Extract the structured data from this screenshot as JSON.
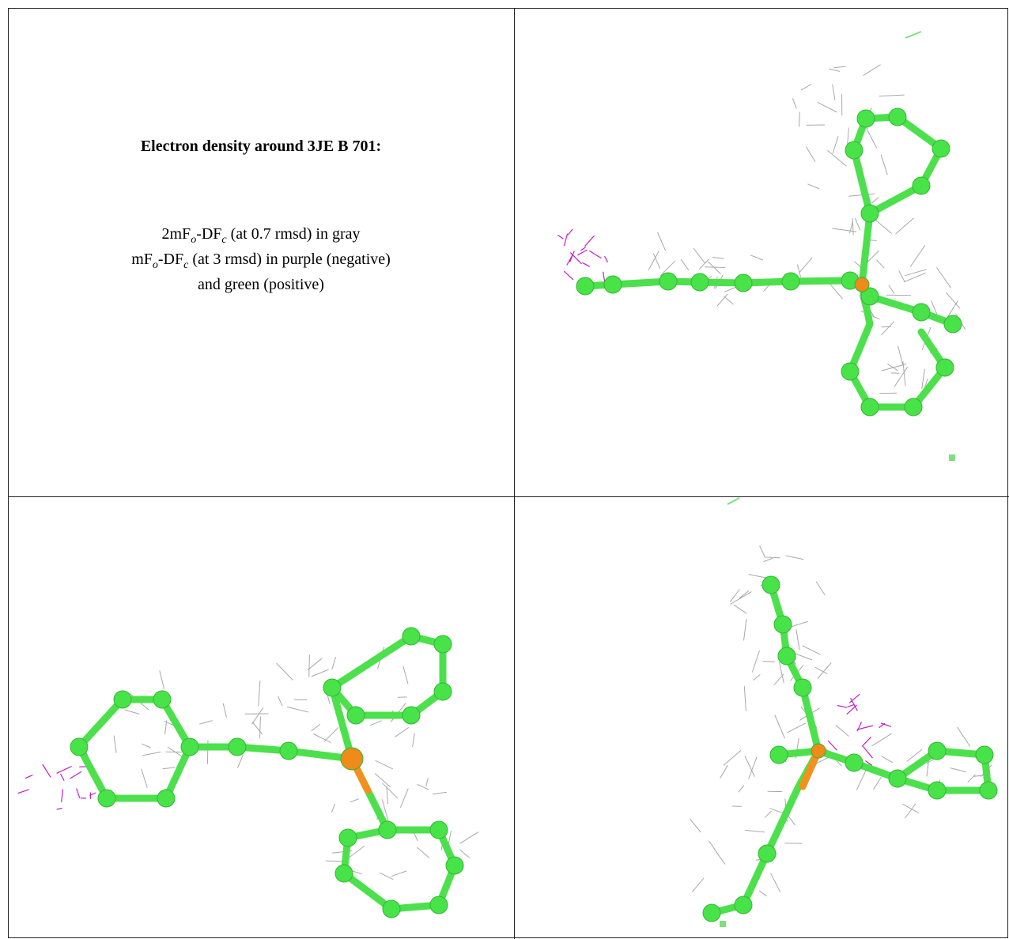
{
  "header": {
    "title": "Electron density around 3JE B 701:"
  },
  "legend": [
    [
      "2mF",
      "o",
      "-DF",
      "c",
      " (at 0.7 rmsd) in gray"
    ],
    [
      "mF",
      "o",
      "-DF",
      "c",
      " (at 3 rmsd) in purple (negative)"
    ],
    [
      "and green (positive)"
    ]
  ]
}
